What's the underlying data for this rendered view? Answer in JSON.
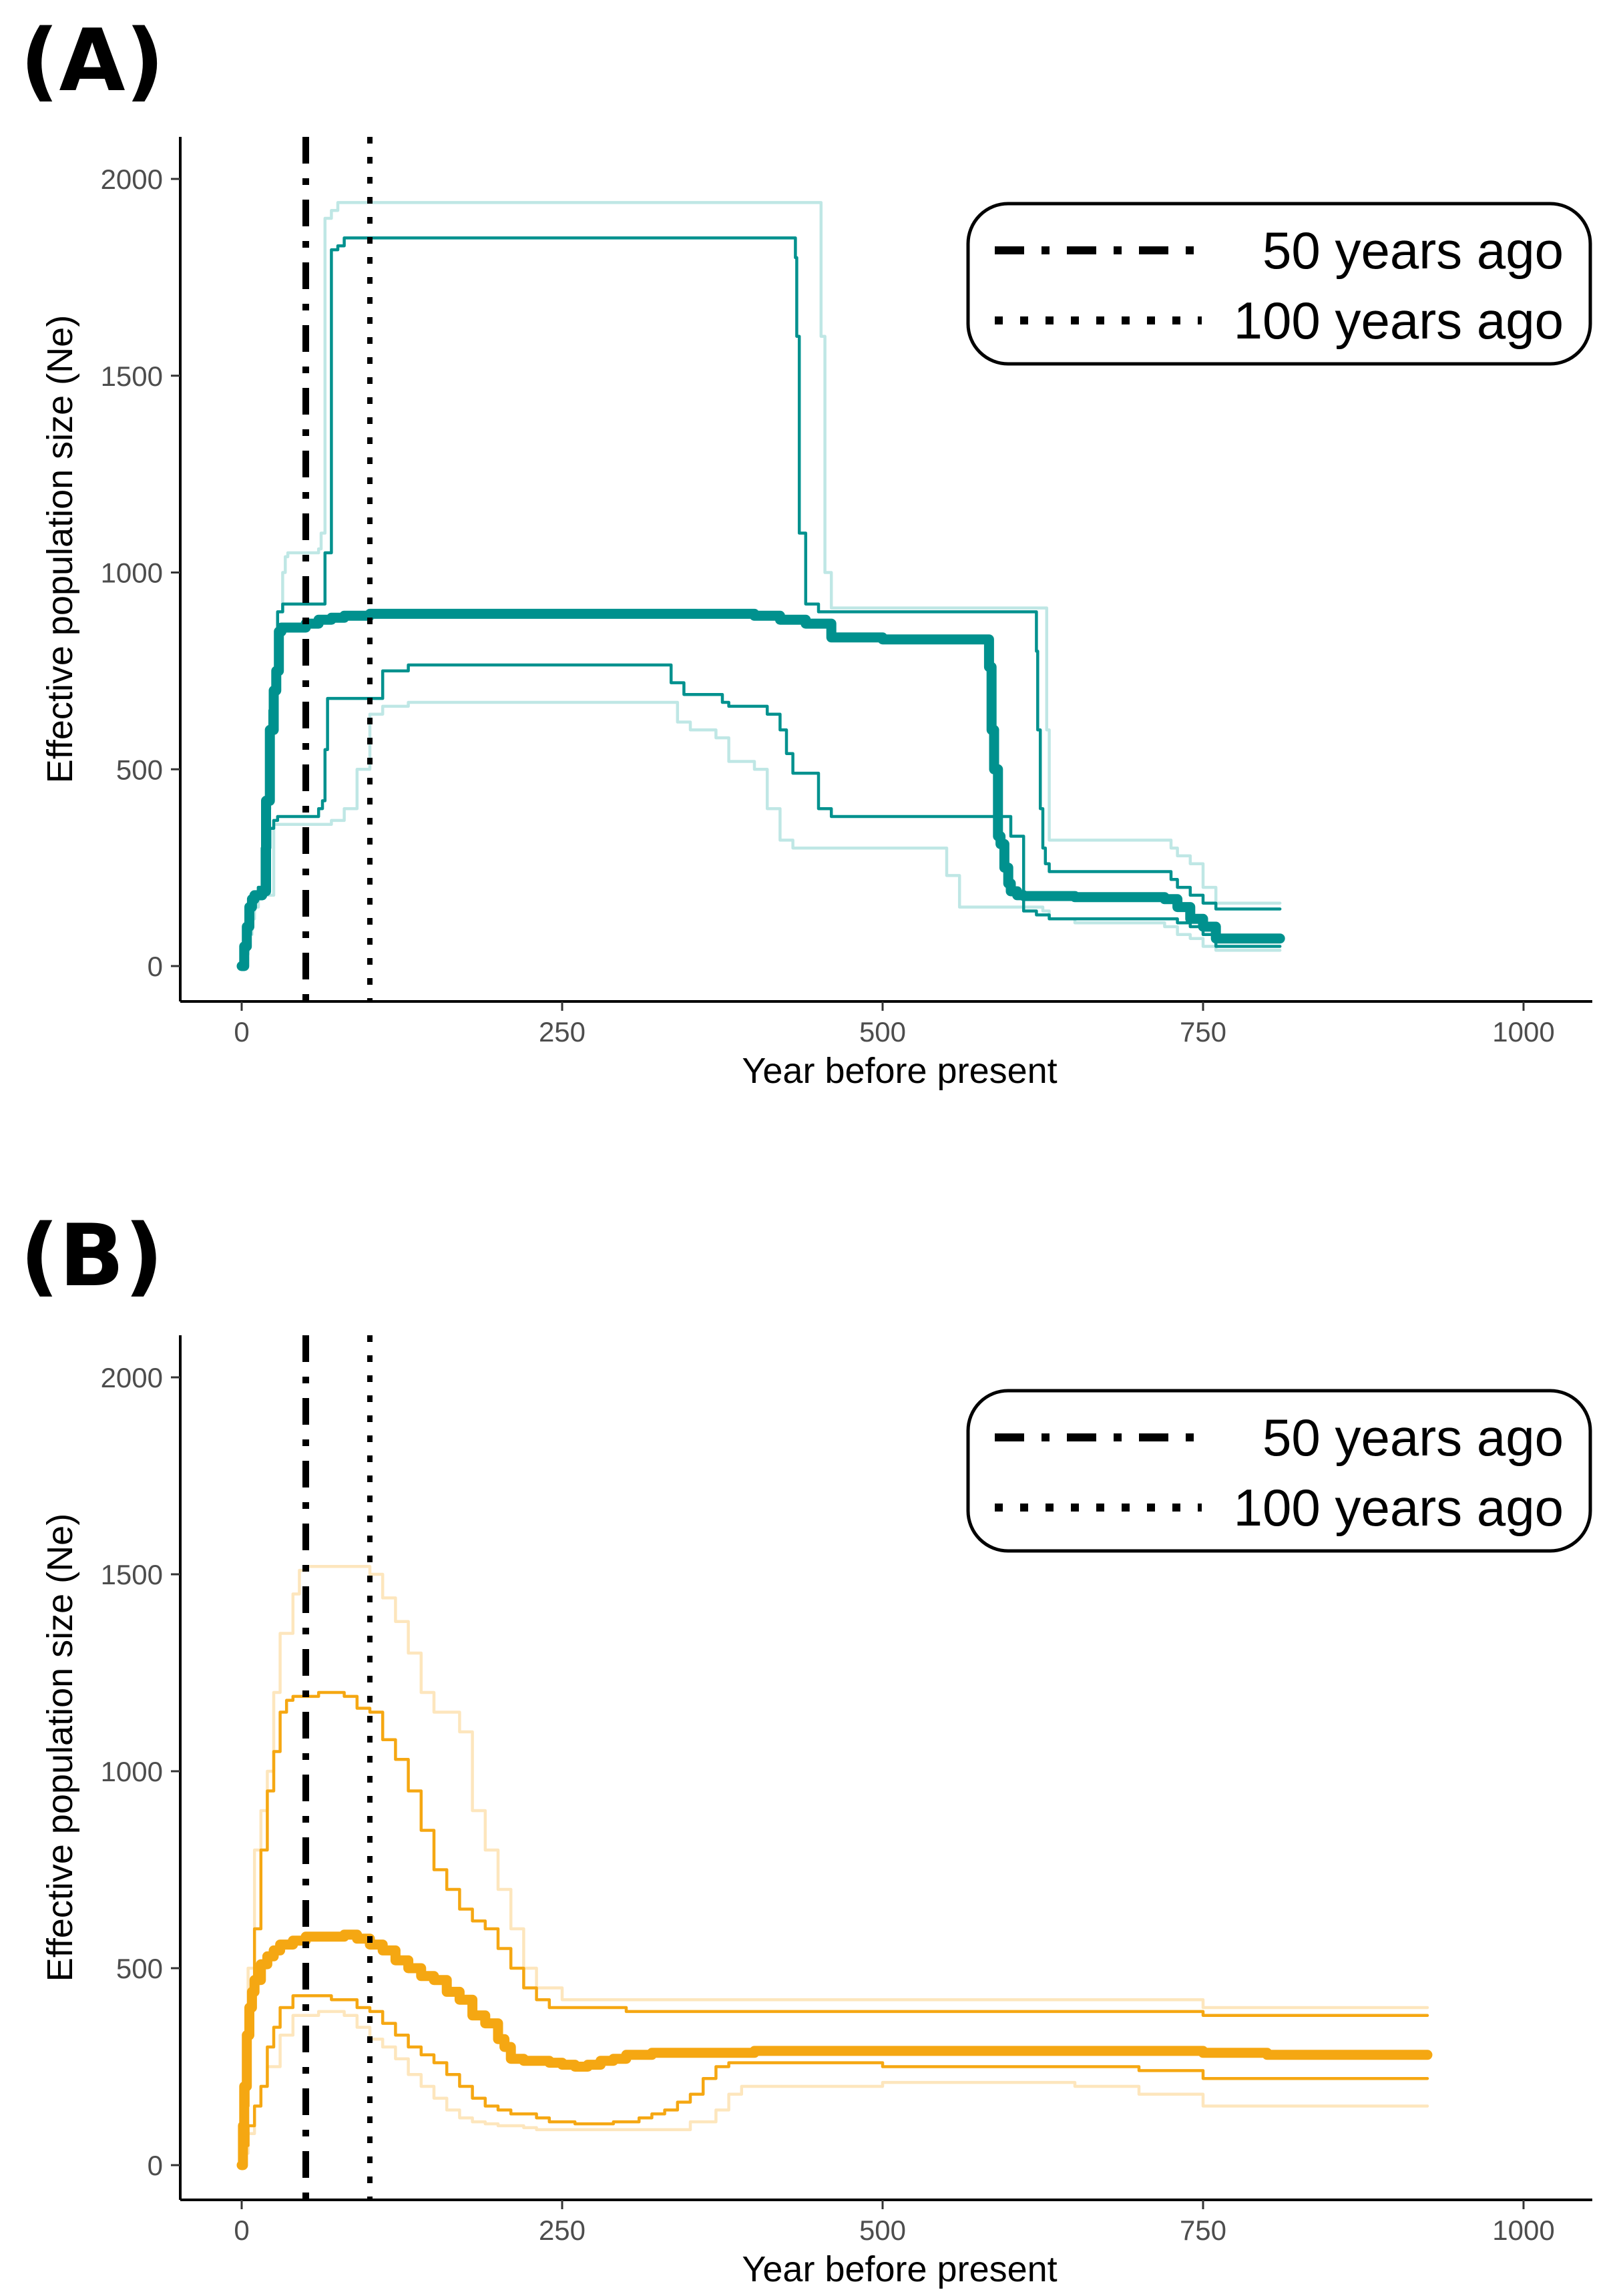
{
  "chart_data": [
    {
      "type": "line",
      "panel_label": "(A)",
      "xlabel": "Year before present",
      "ylabel": "Effective population size (Ne)",
      "xlim": [
        0,
        1000
      ],
      "ylim": [
        0,
        2000
      ],
      "xticks": [
        0,
        250,
        500,
        750,
        1000
      ],
      "yticks": [
        0,
        500,
        1000,
        1500,
        2000
      ],
      "grid": false,
      "legend_position": "top-right",
      "color": "#00918e",
      "light_color": "#bfe7e5",
      "vlines": [
        {
          "x": 50,
          "style": "dashdot",
          "label": "50 years ago"
        },
        {
          "x": 100,
          "style": "dotted",
          "label": "100 years ago"
        }
      ],
      "series": [
        {
          "name": "outer-upper",
          "role": "light",
          "x": [
            0,
            3,
            7,
            10,
            13,
            16,
            19,
            22,
            25,
            28,
            32,
            34,
            36,
            40,
            45,
            50,
            55,
            60,
            62,
            65,
            70,
            75,
            80,
            90,
            100,
            130,
            200,
            300,
            400,
            450,
            452,
            455,
            460,
            500,
            550,
            600,
            625,
            628,
            630,
            650,
            700,
            720,
            725,
            730,
            740,
            750,
            760,
            810
          ],
          "y": [
            0,
            80,
            150,
            180,
            200,
            300,
            400,
            620,
            700,
            900,
            1000,
            1040,
            1050,
            1050,
            1050,
            1050,
            1050,
            1060,
            1100,
            1900,
            1920,
            1940,
            1940,
            1940,
            1940,
            1940,
            1940,
            1940,
            1940,
            1940,
            1600,
            1000,
            910,
            910,
            910,
            910,
            910,
            600,
            320,
            320,
            320,
            320,
            300,
            280,
            260,
            200,
            160,
            160
          ]
        },
        {
          "name": "inner-upper",
          "role": "main",
          "x": [
            0,
            3,
            7,
            10,
            13,
            16,
            19,
            22,
            25,
            28,
            32,
            40,
            45,
            50,
            55,
            60,
            62,
            65,
            70,
            75,
            80,
            90,
            100,
            130,
            200,
            300,
            400,
            430,
            432,
            433,
            435,
            440,
            450,
            500,
            550,
            600,
            618,
            620,
            621,
            623,
            625,
            627,
            630,
            650,
            700,
            720,
            725,
            730,
            740,
            750,
            760,
            810
          ],
          "y": [
            0,
            80,
            150,
            180,
            200,
            300,
            420,
            650,
            750,
            900,
            920,
            920,
            920,
            920,
            920,
            920,
            920,
            1050,
            1820,
            1830,
            1850,
            1850,
            1850,
            1850,
            1850,
            1850,
            1850,
            1850,
            1800,
            1600,
            1100,
            920,
            900,
            900,
            900,
            900,
            900,
            800,
            600,
            400,
            300,
            260,
            240,
            240,
            240,
            240,
            220,
            200,
            180,
            160,
            145,
            145
          ]
        },
        {
          "name": "median",
          "role": "median",
          "x": [
            0,
            2,
            4,
            6,
            8,
            10,
            13,
            16,
            19,
            22,
            25,
            27,
            29,
            31,
            34,
            40,
            50,
            60,
            70,
            80,
            100,
            130,
            200,
            300,
            400,
            420,
            440,
            460,
            500,
            550,
            580,
            583,
            585,
            587,
            590,
            592,
            595,
            598,
            600,
            605,
            610,
            620,
            650,
            700,
            720,
            730,
            740,
            750,
            760,
            810
          ],
          "y": [
            0,
            50,
            100,
            150,
            170,
            180,
            180,
            190,
            420,
            600,
            700,
            750,
            850,
            860,
            860,
            860,
            870,
            880,
            885,
            890,
            895,
            895,
            895,
            895,
            890,
            880,
            870,
            835,
            830,
            830,
            830,
            760,
            600,
            500,
            330,
            310,
            250,
            210,
            190,
            180,
            178,
            178,
            175,
            175,
            170,
            150,
            120,
            100,
            70,
            70
          ]
        },
        {
          "name": "inner-lower",
          "role": "main",
          "x": [
            0,
            2,
            5,
            8,
            10,
            13,
            16,
            19,
            22,
            25,
            28,
            34,
            40,
            50,
            60,
            63,
            65,
            67,
            70,
            80,
            90,
            100,
            110,
            130,
            200,
            300,
            330,
            335,
            340,
            345,
            370,
            375,
            380,
            400,
            410,
            420,
            425,
            430,
            440,
            450,
            460,
            480,
            500,
            550,
            580,
            600,
            610,
            620,
            630,
            640,
            650,
            700,
            720,
            730,
            740,
            750,
            760,
            810
          ],
          "y": [
            0,
            40,
            100,
            150,
            180,
            200,
            200,
            300,
            350,
            370,
            380,
            380,
            380,
            380,
            400,
            420,
            550,
            680,
            680,
            680,
            680,
            680,
            750,
            765,
            765,
            765,
            765,
            720,
            720,
            690,
            690,
            670,
            660,
            660,
            640,
            600,
            540,
            490,
            490,
            400,
            380,
            380,
            380,
            380,
            380,
            330,
            140,
            130,
            120,
            120,
            120,
            120,
            120,
            110,
            100,
            80,
            50,
            50
          ]
        },
        {
          "name": "outer-lower",
          "role": "light",
          "x": [
            0,
            2,
            5,
            8,
            10,
            13,
            16,
            20,
            25,
            30,
            40,
            50,
            60,
            70,
            80,
            90,
            100,
            110,
            130,
            200,
            300,
            330,
            340,
            350,
            370,
            380,
            400,
            410,
            420,
            430,
            440,
            460,
            480,
            500,
            540,
            550,
            560,
            600,
            625,
            630,
            650,
            700,
            720,
            730,
            740,
            750,
            760,
            810
          ],
          "y": [
            0,
            30,
            80,
            120,
            150,
            170,
            180,
            180,
            360,
            360,
            360,
            360,
            360,
            370,
            400,
            500,
            640,
            660,
            670,
            670,
            670,
            670,
            620,
            600,
            580,
            520,
            500,
            400,
            320,
            300,
            300,
            300,
            300,
            300,
            300,
            230,
            150,
            150,
            140,
            120,
            110,
            110,
            100,
            80,
            70,
            50,
            40,
            40
          ]
        }
      ],
      "legend": [
        "50 years ago",
        "100 years ago"
      ]
    },
    {
      "type": "line",
      "panel_label": "(B)",
      "xlabel": "Year before present",
      "ylabel": "Effective population size (Ne)",
      "xlim": [
        0,
        1000
      ],
      "ylim": [
        0,
        2000
      ],
      "xticks": [
        0,
        250,
        500,
        750,
        1000
      ],
      "yticks": [
        0,
        500,
        1000,
        1500,
        2000
      ],
      "grid": false,
      "legend_position": "top-right",
      "color": "#f5a712",
      "light_color": "#fde6bd",
      "vlines": [
        {
          "x": 50,
          "style": "dashdot",
          "label": "50 years ago"
        },
        {
          "x": 100,
          "style": "dotted",
          "label": "100 years ago"
        }
      ],
      "series": [
        {
          "name": "outer-upper",
          "role": "light",
          "x": [
            0,
            2,
            5,
            10,
            15,
            20,
            25,
            30,
            40,
            45,
            50,
            60,
            80,
            95,
            100,
            110,
            120,
            130,
            140,
            150,
            160,
            170,
            180,
            190,
            200,
            210,
            220,
            230,
            250,
            300,
            400,
            750,
            925
          ],
          "y": [
            0,
            200,
            500,
            800,
            900,
            1000,
            1200,
            1350,
            1450,
            1510,
            1520,
            1520,
            1520,
            1520,
            1500,
            1440,
            1380,
            1300,
            1200,
            1150,
            1150,
            1100,
            900,
            800,
            700,
            600,
            500,
            450,
            420,
            420,
            420,
            400,
            400
          ]
        },
        {
          "name": "inner-upper",
          "role": "main",
          "x": [
            0,
            2,
            5,
            10,
            15,
            20,
            25,
            30,
            35,
            40,
            50,
            60,
            70,
            80,
            90,
            100,
            110,
            120,
            130,
            140,
            150,
            160,
            170,
            180,
            190,
            200,
            210,
            220,
            230,
            240,
            250,
            300,
            400,
            700,
            750,
            925
          ],
          "y": [
            0,
            150,
            400,
            600,
            800,
            950,
            1050,
            1150,
            1180,
            1190,
            1190,
            1200,
            1200,
            1190,
            1160,
            1150,
            1080,
            1030,
            950,
            850,
            750,
            700,
            650,
            620,
            600,
            550,
            500,
            450,
            420,
            400,
            400,
            390,
            390,
            390,
            380,
            380
          ]
        },
        {
          "name": "median",
          "role": "median",
          "x": [
            0,
            1,
            2,
            4,
            6,
            8,
            10,
            15,
            20,
            25,
            30,
            40,
            50,
            60,
            70,
            80,
            90,
            100,
            110,
            120,
            130,
            140,
            150,
            160,
            170,
            180,
            190,
            200,
            205,
            210,
            220,
            230,
            240,
            250,
            260,
            270,
            280,
            290,
            300,
            320,
            350,
            400,
            500,
            600,
            700,
            750,
            800,
            925
          ],
          "y": [
            0,
            100,
            200,
            330,
            400,
            440,
            470,
            510,
            530,
            545,
            560,
            570,
            580,
            580,
            580,
            585,
            575,
            560,
            545,
            520,
            500,
            480,
            470,
            440,
            420,
            380,
            360,
            320,
            300,
            270,
            265,
            265,
            260,
            255,
            250,
            255,
            265,
            270,
            280,
            285,
            285,
            290,
            290,
            290,
            290,
            285,
            280,
            280
          ]
        },
        {
          "name": "inner-lower",
          "role": "main",
          "x": [
            0,
            2,
            5,
            10,
            15,
            20,
            25,
            30,
            40,
            50,
            60,
            70,
            80,
            90,
            100,
            110,
            120,
            130,
            140,
            150,
            160,
            170,
            180,
            190,
            200,
            210,
            220,
            230,
            240,
            250,
            260,
            270,
            280,
            290,
            300,
            310,
            320,
            330,
            340,
            350,
            360,
            370,
            380,
            400,
            500,
            550,
            600,
            700,
            750,
            925
          ],
          "y": [
            0,
            50,
            100,
            150,
            200,
            300,
            350,
            400,
            430,
            430,
            430,
            420,
            420,
            400,
            390,
            360,
            330,
            300,
            280,
            260,
            230,
            200,
            170,
            150,
            140,
            130,
            130,
            120,
            110,
            110,
            105,
            105,
            105,
            110,
            110,
            120,
            130,
            140,
            160,
            180,
            220,
            250,
            260,
            260,
            250,
            250,
            250,
            240,
            220,
            220
          ]
        },
        {
          "name": "outer-lower",
          "role": "light",
          "x": [
            0,
            2,
            5,
            10,
            15,
            20,
            30,
            40,
            50,
            60,
            70,
            80,
            90,
            100,
            110,
            120,
            130,
            140,
            150,
            160,
            170,
            180,
            190,
            200,
            210,
            220,
            230,
            240,
            250,
            260,
            300,
            350,
            370,
            380,
            390,
            400,
            500,
            600,
            650,
            700,
            750,
            925
          ],
          "y": [
            0,
            30,
            80,
            150,
            200,
            250,
            330,
            380,
            380,
            390,
            390,
            380,
            350,
            320,
            300,
            270,
            230,
            200,
            170,
            140,
            120,
            110,
            105,
            100,
            100,
            95,
            90,
            90,
            90,
            90,
            90,
            110,
            140,
            180,
            200,
            200,
            210,
            210,
            200,
            180,
            150,
            150
          ]
        }
      ],
      "legend": [
        "50 years ago",
        "100 years ago"
      ]
    }
  ]
}
